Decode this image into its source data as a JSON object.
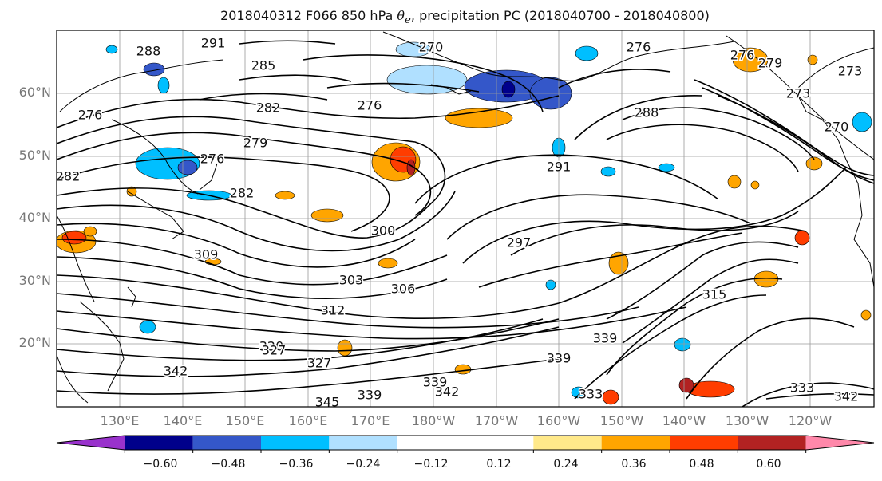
{
  "title": {
    "prefix": "2018040312 F066 850 hPa ",
    "symbol": "θ",
    "subscript": "e",
    "suffix": ", precipitation PC (2018040700 - 2018040800)"
  },
  "map": {
    "lat_labels": [
      "60°N",
      "50°N",
      "40°N",
      "30°N",
      "20°N"
    ],
    "lon_labels": [
      "130°E",
      "140°E",
      "150°E",
      "160°E",
      "170°E",
      "180°W",
      "170°W",
      "160°W",
      "150°W",
      "140°W",
      "130°W",
      "120°W"
    ],
    "contour_labels": [
      "291",
      "285",
      "288",
      "276",
      "282",
      "276",
      "279",
      "276",
      "282",
      "282",
      "270",
      "276",
      "288",
      "291",
      "276",
      "279",
      "273",
      "273",
      "270",
      "297",
      "300",
      "309",
      "303",
      "306",
      "312",
      "320",
      "327",
      "342",
      "327",
      "339",
      "339",
      "342",
      "345",
      "339",
      "333",
      "339",
      "315",
      "333",
      "342"
    ]
  },
  "colorbar": {
    "colors": [
      "#9932cc",
      "#00008b",
      "#3457c9",
      "#00bfff",
      "#b0e0ff",
      "#ffffff",
      "#ffe98a",
      "#ffa500",
      "#ff3d00",
      "#b22222",
      "#ff88aa"
    ],
    "ticks": [
      "−0.60",
      "−0.48",
      "−0.36",
      "−0.24",
      "−0.12",
      "0.12",
      "0.24",
      "0.36",
      "0.48",
      "0.60"
    ]
  }
}
